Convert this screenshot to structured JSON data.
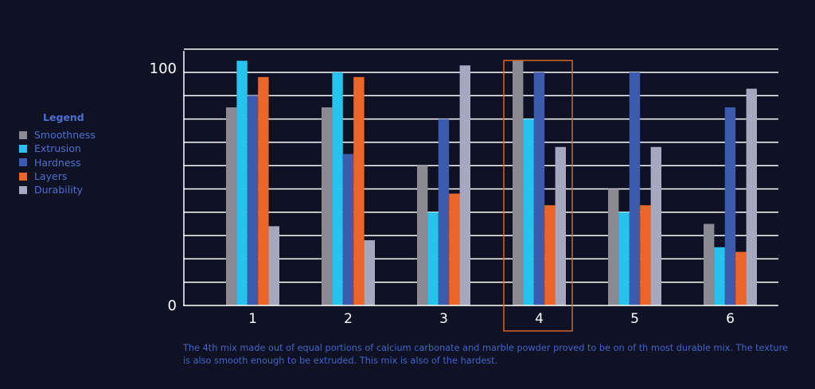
{
  "chart_data": {
    "type": "bar",
    "categories": [
      "1",
      "2",
      "3",
      "4",
      "5",
      "6"
    ],
    "y_ticks": [
      "0",
      "100"
    ],
    "ylim": [
      0,
      110
    ],
    "grid": true,
    "highlight_category": "4",
    "series": [
      {
        "name": "Smoothness",
        "color": "#8b8a93",
        "values": [
          85,
          85,
          60,
          105,
          50,
          35
        ]
      },
      {
        "name": "Extrusion",
        "color": "#28c2ee",
        "values": [
          105,
          100,
          40,
          80,
          40,
          25
        ]
      },
      {
        "name": "Hardness",
        "color": "#3b5ab0",
        "values": [
          90,
          65,
          80,
          100,
          100,
          85
        ]
      },
      {
        "name": "Layers",
        "color": "#ec6629",
        "values": [
          98,
          98,
          48,
          43,
          43,
          23
        ]
      },
      {
        "name": "Durability",
        "color": "#a4a8c0",
        "values": [
          34,
          28,
          103,
          68,
          68,
          93
        ]
      }
    ]
  },
  "legend": {
    "title": "Legend"
  },
  "caption": "The 4th mix made out of equal portions of calcium carbonate and marble powder proved to be on of th most durable mix. The texture is also smooth enough to be extruded. This mix is also of the hardest.",
  "colors": {
    "highlight": "#d8642a",
    "grid": "#ffffff",
    "text": "#ffffff",
    "legend_text": "#4f6fd0"
  }
}
